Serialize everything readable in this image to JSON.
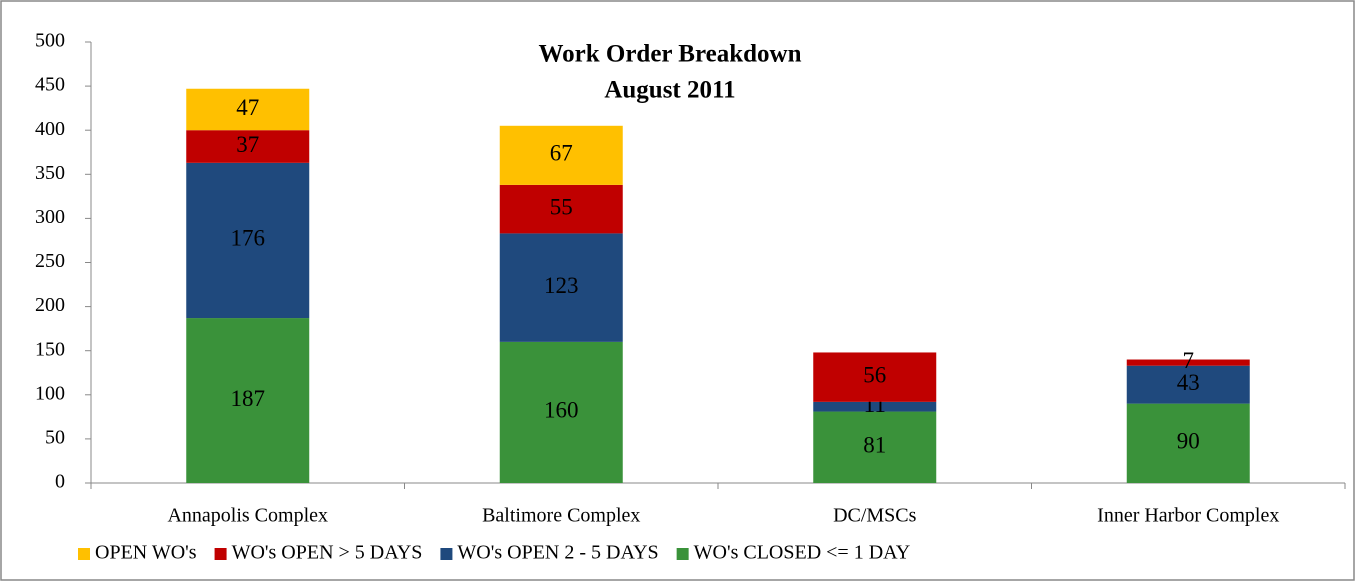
{
  "chart_data": {
    "type": "stacked_bar",
    "title": "Work Order Breakdown",
    "subtitle": "August 2011",
    "categories": [
      "Annapolis Complex",
      "Baltimore Complex",
      "DC/MSCs",
      "Inner Harbor Complex"
    ],
    "series": [
      {
        "name": "WO's CLOSED <= 1 DAY",
        "color": "#3a923a",
        "values": [
          187,
          160,
          81,
          90
        ]
      },
      {
        "name": "WO's OPEN 2 - 5 DAYS",
        "color": "#1f497d",
        "values": [
          176,
          123,
          11,
          43
        ]
      },
      {
        "name": "WO's OPEN > 5 DAYS",
        "color": "#c00000",
        "values": [
          37,
          55,
          56,
          7
        ]
      },
      {
        "name": "OPEN WO's",
        "color": "#ffc000",
        "values": [
          47,
          67,
          null,
          null
        ]
      }
    ],
    "ylim": [
      0,
      500
    ],
    "yticks": [
      0,
      50,
      100,
      150,
      200,
      250,
      300,
      350,
      400,
      450,
      500
    ],
    "grid": false,
    "legend": "bottom"
  }
}
